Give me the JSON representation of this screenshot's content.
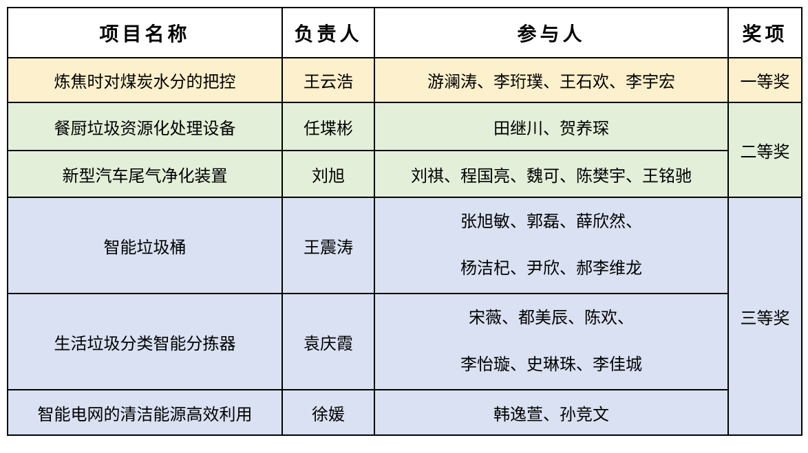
{
  "table": {
    "headers": {
      "project": "项目名称",
      "leader": "负责人",
      "participants": "参与人",
      "award": "奖项"
    },
    "rows": [
      {
        "project": "炼焦时对煤炭水分的把控",
        "leader": "王云浩",
        "participants": [
          "游澜涛、李珩璞、王石欢、李宇宏"
        ],
        "award": "一等奖"
      },
      {
        "project": "餐厨垃圾资源化处理设备",
        "leader": "任堞彬",
        "participants": [
          "田继川、贺养琛"
        ],
        "award": "二等奖"
      },
      {
        "project": "新型汽车尾气净化装置",
        "leader": "刘旭",
        "participants": [
          "刘祺、程国亮、魏可、陈樊宇、王铭驰"
        ]
      },
      {
        "project": "智能垃圾桶",
        "leader": "王震涛",
        "participants": [
          "张旭敏、郭磊、薛欣然、",
          "杨洁杞、尹欣、郝李维龙"
        ],
        "award": "三等奖"
      },
      {
        "project": "生活垃圾分类智能分拣器",
        "leader": "袁庆霞",
        "participants": [
          "宋薇、都美辰、陈欢、",
          "李怡璇、史琳珠、李佳城"
        ]
      },
      {
        "project": "智能电网的清洁能源高效利用",
        "leader": "徐媛",
        "participants": [
          "韩逸萱、孙竞文"
        ]
      }
    ],
    "colors": {
      "first_prize_bg": "#FDF0CC",
      "second_prize_bg": "#E3EFD9",
      "third_prize_bg": "#D9E1F2",
      "border": "#000000",
      "header_bg": "#FFFFFF"
    }
  }
}
